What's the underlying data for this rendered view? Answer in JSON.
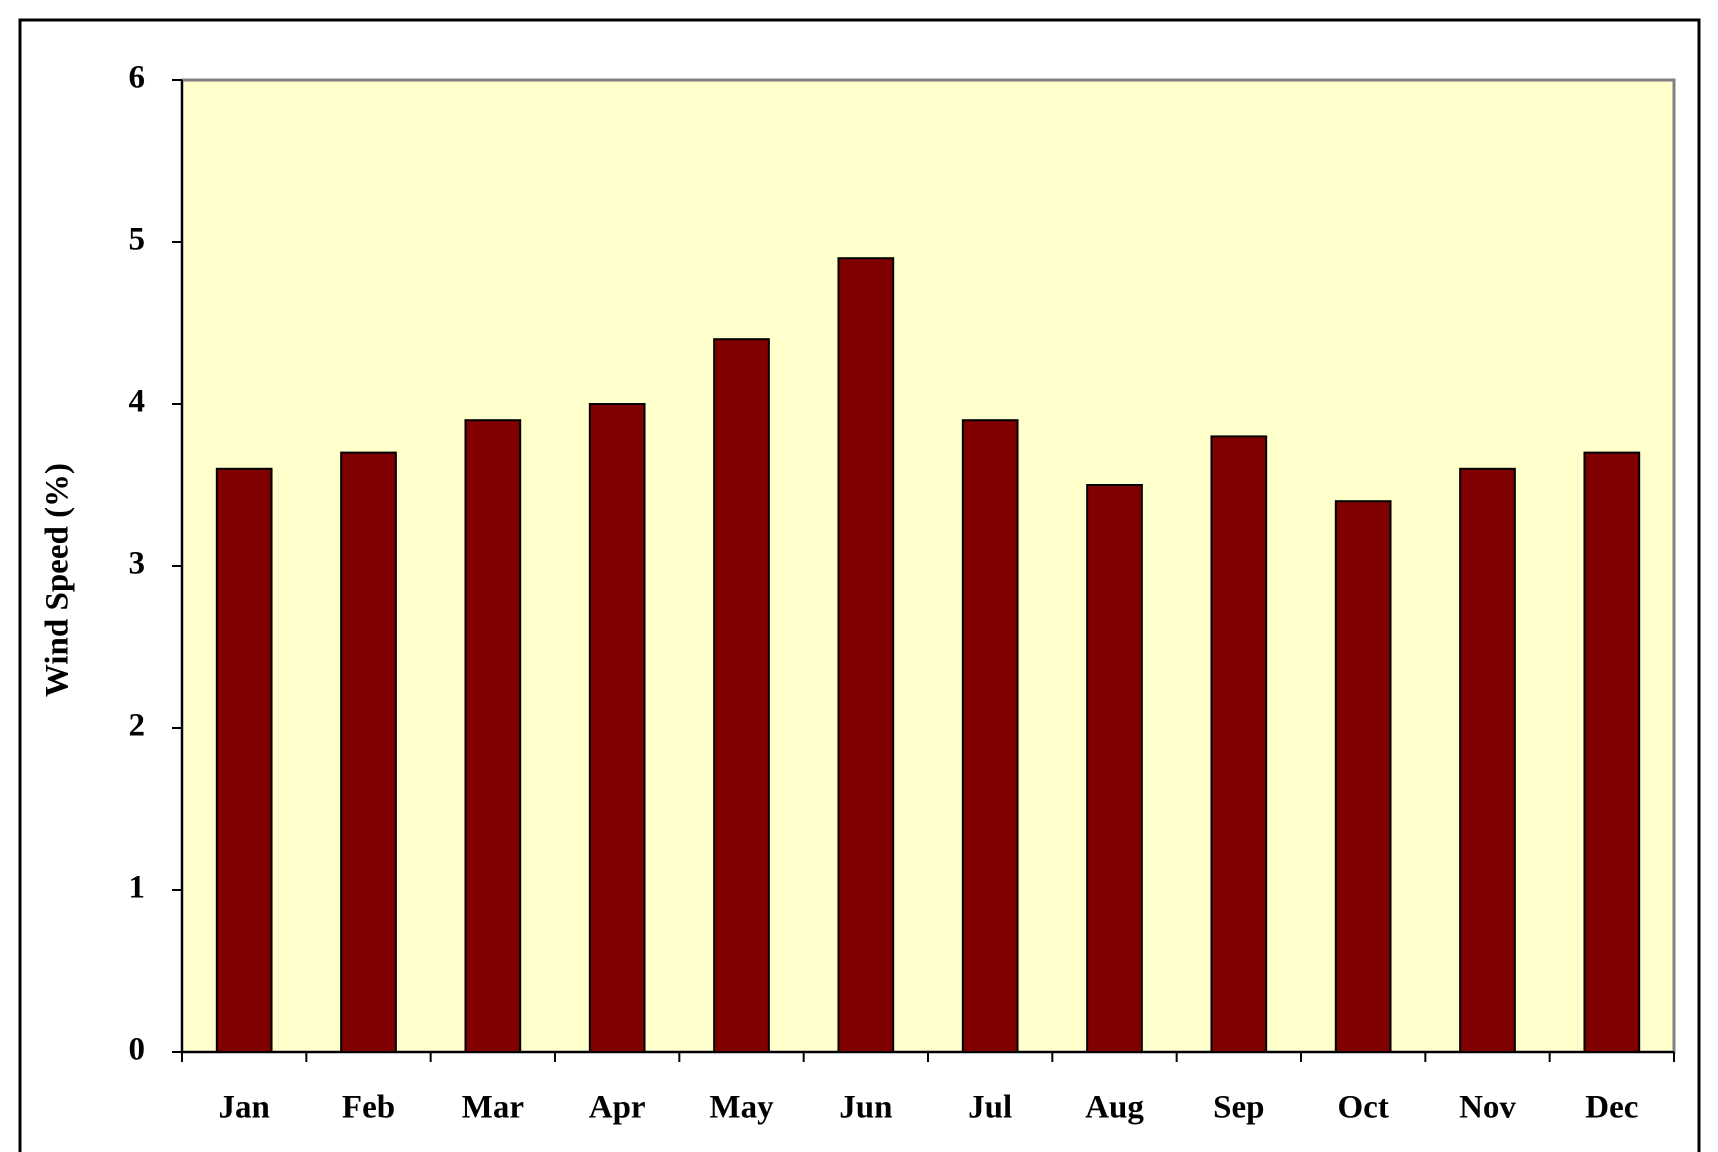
{
  "chart_data": {
    "type": "bar",
    "y_label": "Wind Speed (%)",
    "categories": [
      "Jan",
      "Feb",
      "Mar",
      "Apr",
      "May",
      "Jun",
      "Jul",
      "Aug",
      "Sep",
      "Oct",
      "Nov",
      "Dec"
    ],
    "values": [
      3.6,
      3.7,
      3.9,
      4.0,
      4.4,
      4.9,
      3.9,
      3.5,
      3.8,
      3.4,
      3.6,
      3.7
    ],
    "color": "#800000",
    "ylim": [
      0,
      6
    ],
    "yticks": [
      0,
      1,
      2,
      3,
      4,
      5,
      6
    ],
    "grid": false
  }
}
